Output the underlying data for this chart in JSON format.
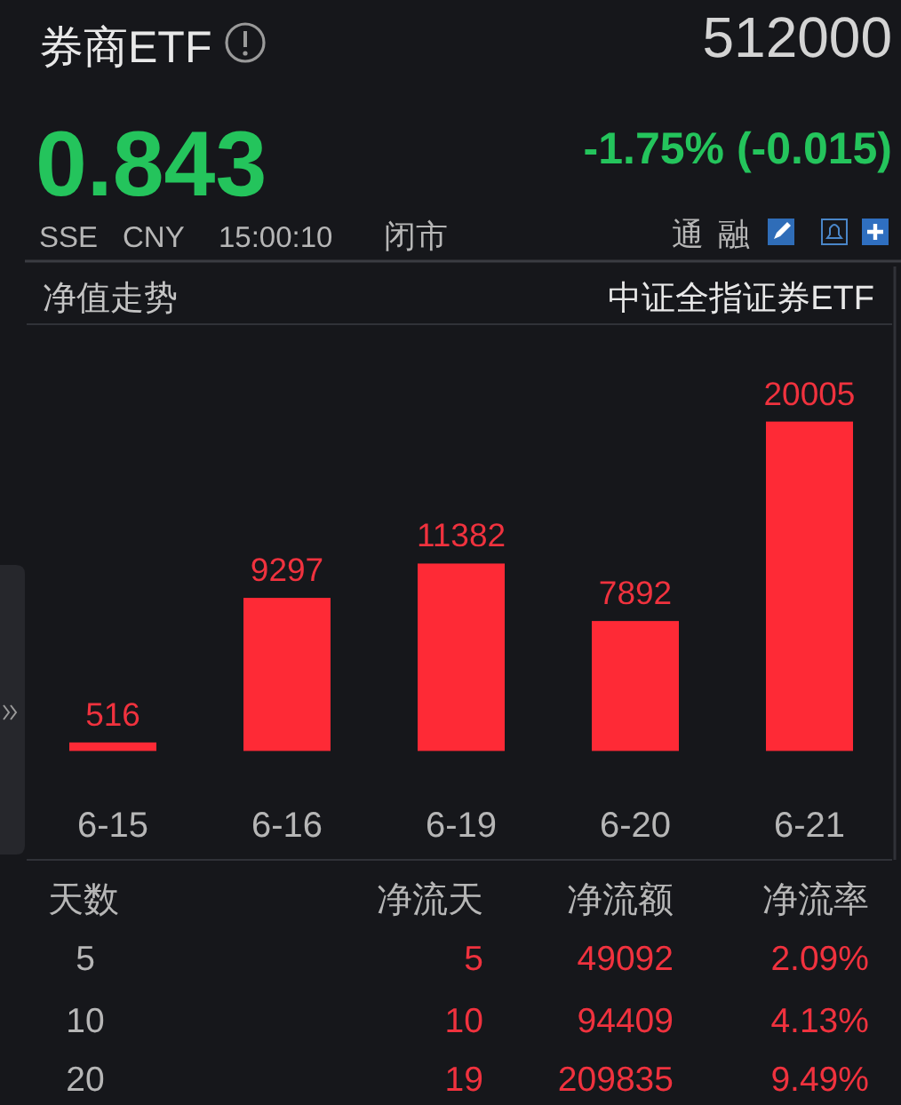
{
  "chart_data": {
    "type": "bar",
    "title": "券商ETF",
    "categories": [
      "6-15",
      "6-16",
      "6-19",
      "6-20",
      "6-21"
    ],
    "values": [
      516,
      9297,
      11382,
      7892,
      20005
    ],
    "color": "#fe2a36",
    "data_labels": true,
    "annotations": [
      "512000",
      "0.843",
      "-1.75% (-0.015)",
      "SSE",
      "CNY",
      "15:00:10",
      "闭市",
      "通",
      "融",
      "净值走势",
      "中证全指证券ETF",
      "天数",
      "净流天",
      "净流额",
      "净流率",
      "5",
      "5",
      "49092",
      "2.09%",
      "10",
      "10",
      "94409",
      "4.13%",
      "20",
      "19",
      "209835",
      "9.49%"
    ]
  }
}
